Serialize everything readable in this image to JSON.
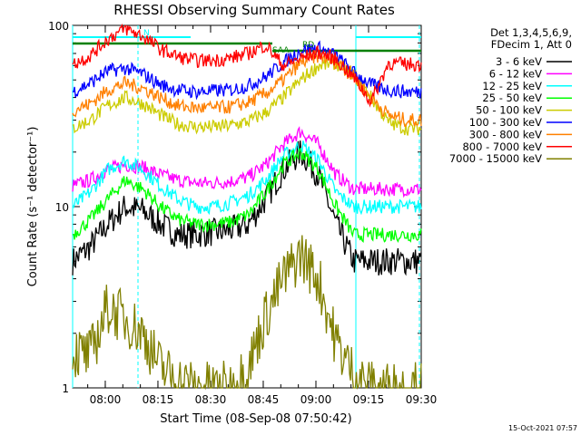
{
  "chart_data": {
    "type": "line",
    "title": "RHESSI Observing Summary Count Rates",
    "xlabel": "Start Time (08-Sep-08 07:50:42)",
    "ylabel": "Count Rate (s⁻¹ detector⁻¹)",
    "yscale": "log",
    "ylim": [
      1,
      100
    ],
    "xlim": [
      "07:50:42",
      "09:30:00"
    ],
    "x_ticks": [
      "08:00",
      "08:15",
      "08:30",
      "08:45",
      "09:00",
      "09:15",
      "09:30"
    ],
    "y_ticks": [
      "1",
      "10",
      "100"
    ],
    "legend_header": [
      "Det 1,3,4,5,6,9,",
      "FDecim 1, Att 0"
    ],
    "legend_position": "right",
    "time_minutes": [
      0,
      5,
      10,
      15,
      20,
      25,
      30,
      35,
      40,
      45,
      50,
      55,
      60,
      65,
      70,
      75,
      80,
      85,
      90,
      95,
      99
    ],
    "series": [
      {
        "name": "3 - 6 keV",
        "color": "#000000",
        "values": [
          5,
          6,
          8,
          10,
          9.5,
          8,
          7,
          7,
          7.2,
          7.4,
          8,
          11,
          16,
          20,
          15,
          8,
          5,
          5,
          5,
          5,
          5
        ]
      },
      {
        "name": "6 - 12 keV",
        "color": "#ff00ff",
        "values": [
          13,
          14,
          16,
          17,
          16.5,
          15,
          14,
          13.5,
          13.5,
          13.8,
          14.5,
          17,
          22,
          26,
          22,
          15,
          12.5,
          12.5,
          12.5,
          12.5,
          12.5
        ]
      },
      {
        "name": "12 - 25 keV",
        "color": "#00ffff",
        "values": [
          10,
          12,
          16,
          18,
          16,
          13,
          11,
          10,
          10,
          10.5,
          11.5,
          14,
          19,
          22,
          18,
          12,
          10,
          10,
          10,
          10,
          10
        ]
      },
      {
        "name": "25 - 50 keV",
        "color": "#00ff00",
        "values": [
          7,
          8.5,
          11,
          14,
          12.5,
          10,
          8.5,
          8,
          8,
          8.2,
          9,
          12,
          17,
          20,
          16,
          10,
          7,
          7,
          7,
          7,
          7
        ]
      },
      {
        "name": "50 - 100 keV",
        "color": "#cccc00",
        "values": [
          27,
          30,
          36,
          40,
          37,
          32,
          28.5,
          27.5,
          27.5,
          28,
          29.5,
          33,
          40,
          50,
          60,
          62,
          54,
          40,
          29,
          27,
          27
        ]
      },
      {
        "name": "100 - 300 keV",
        "color": "#0000ff",
        "values": [
          43,
          48,
          56,
          58,
          54,
          47,
          44,
          43,
          43.5,
          44,
          46.5,
          52,
          62,
          73,
          75,
          68,
          55,
          47,
          44,
          43,
          43
        ]
      },
      {
        "name": "300 - 800 keV",
        "color": "#ff8000",
        "values": [
          34,
          37,
          44,
          48,
          45,
          40,
          36,
          35,
          35,
          35.5,
          37.5,
          42,
          50,
          62,
          68,
          63,
          52,
          40,
          32,
          30,
          30
        ]
      },
      {
        "name": "800 - 7000 keV",
        "color": "#ff0000",
        "values": [
          61,
          68,
          84,
          96,
          87,
          74,
          67,
          64,
          64,
          66,
          70,
          78,
          60,
          66,
          71,
          65,
          52,
          38,
          62,
          61,
          61
        ]
      },
      {
        "name": "7000 - 15000 keV",
        "color": "#808000",
        "values": [
          1.6,
          1.5,
          2.8,
          2.4,
          2.0,
          1.3,
          1.1,
          1.0,
          1.0,
          1.0,
          1.3,
          2.5,
          4.0,
          5.5,
          4.0,
          1.8,
          1.2,
          1.0,
          1.0,
          1.0,
          1.0
        ]
      }
    ],
    "annotations": [
      "N",
      "SAA",
      "RD"
    ],
    "footer_date": "15-Oct-2021 07:57"
  }
}
